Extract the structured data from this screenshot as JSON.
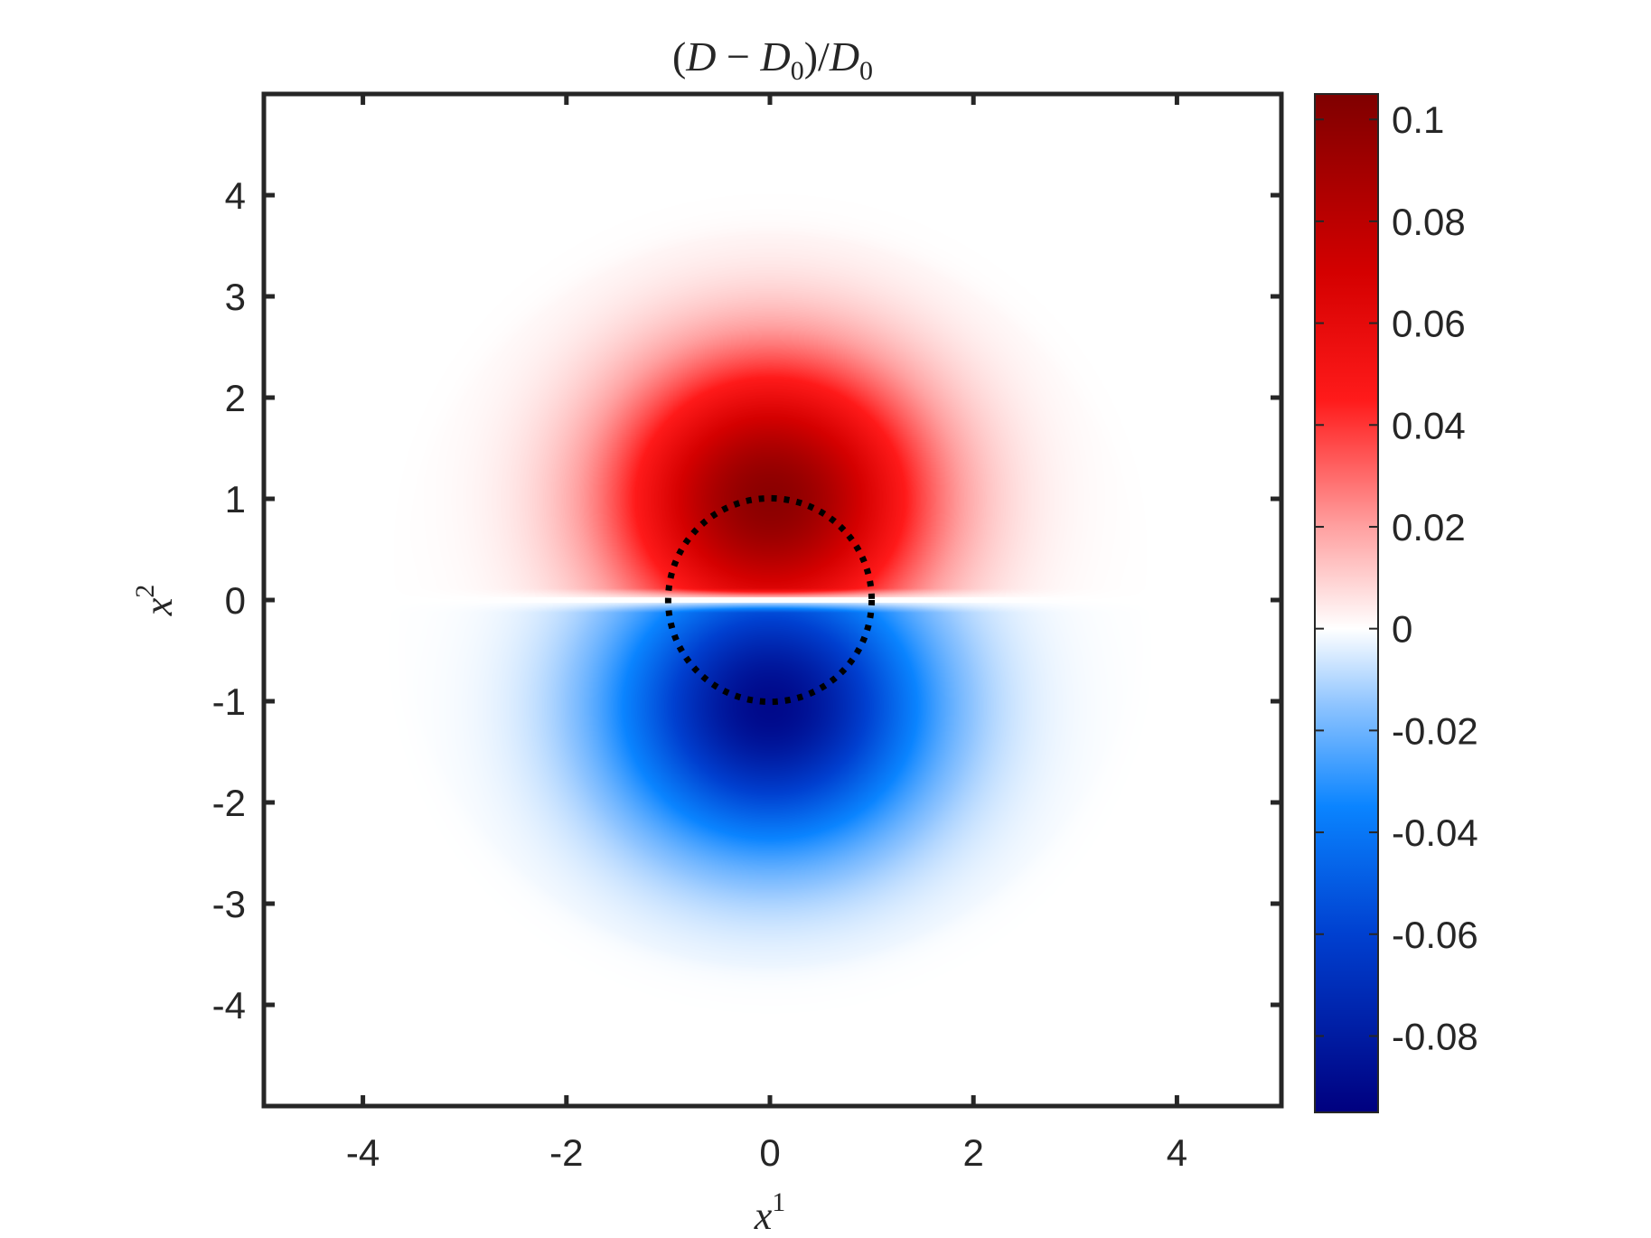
{
  "chart_data": {
    "type": "heatmap",
    "title": {
      "open": "(",
      "var": "D",
      "minus": " − ",
      "var2": "D",
      "sub": "0",
      "close_div": ")/",
      "var3": "D",
      "sub2": "0"
    },
    "xlabel": {
      "var": "x",
      "sup": "1"
    },
    "ylabel": {
      "var": "x",
      "sup": "2"
    },
    "xlim": [
      -5,
      5
    ],
    "ylim": [
      -5,
      5
    ],
    "xticks": [
      -4,
      -2,
      0,
      2,
      4
    ],
    "xtick_labels": [
      "-4",
      "-2",
      "0",
      "2",
      "4"
    ],
    "yticks": [
      4,
      3,
      2,
      1,
      0,
      -1,
      -2,
      -3,
      -4
    ],
    "ytick_labels": [
      "4",
      "3",
      "2",
      "1",
      "0",
      "-1",
      "-2",
      "-3",
      "-4"
    ],
    "colorbar": {
      "clim": [
        -0.095,
        0.105
      ],
      "ticks": [
        0.1,
        0.08,
        0.06,
        0.04,
        0.02,
        0,
        -0.02,
        -0.04,
        -0.06,
        -0.08
      ],
      "tick_labels": [
        "0.1",
        "0.08",
        "0.06",
        "0.04",
        "0.02",
        "0",
        "-0.02",
        "-0.04",
        "-0.06",
        "-0.08"
      ],
      "colormap": [
        [
          -0.095,
          "#00007f"
        ],
        [
          -0.06,
          "#0040d0"
        ],
        [
          -0.035,
          "#0a84ff"
        ],
        [
          -0.015,
          "#8ec4ff"
        ],
        [
          0,
          "#ffffff"
        ],
        [
          0.02,
          "#ffa0a0"
        ],
        [
          0.045,
          "#ff1a1a"
        ],
        [
          0.07,
          "#d40000"
        ],
        [
          0.105,
          "#7f0000"
        ]
      ]
    },
    "field": {
      "description_values": "dipole field: positive lobe above x2=0 peaking about 0.1 near (0,1), negative lobe below peaking about -0.09 near (0,-1)",
      "peak_positive": 0.1,
      "peak_negative": -0.09
    },
    "circle": {
      "center": [
        0,
        0
      ],
      "radius": 1,
      "style": "dotted",
      "color": "#000000"
    },
    "grid": false
  }
}
